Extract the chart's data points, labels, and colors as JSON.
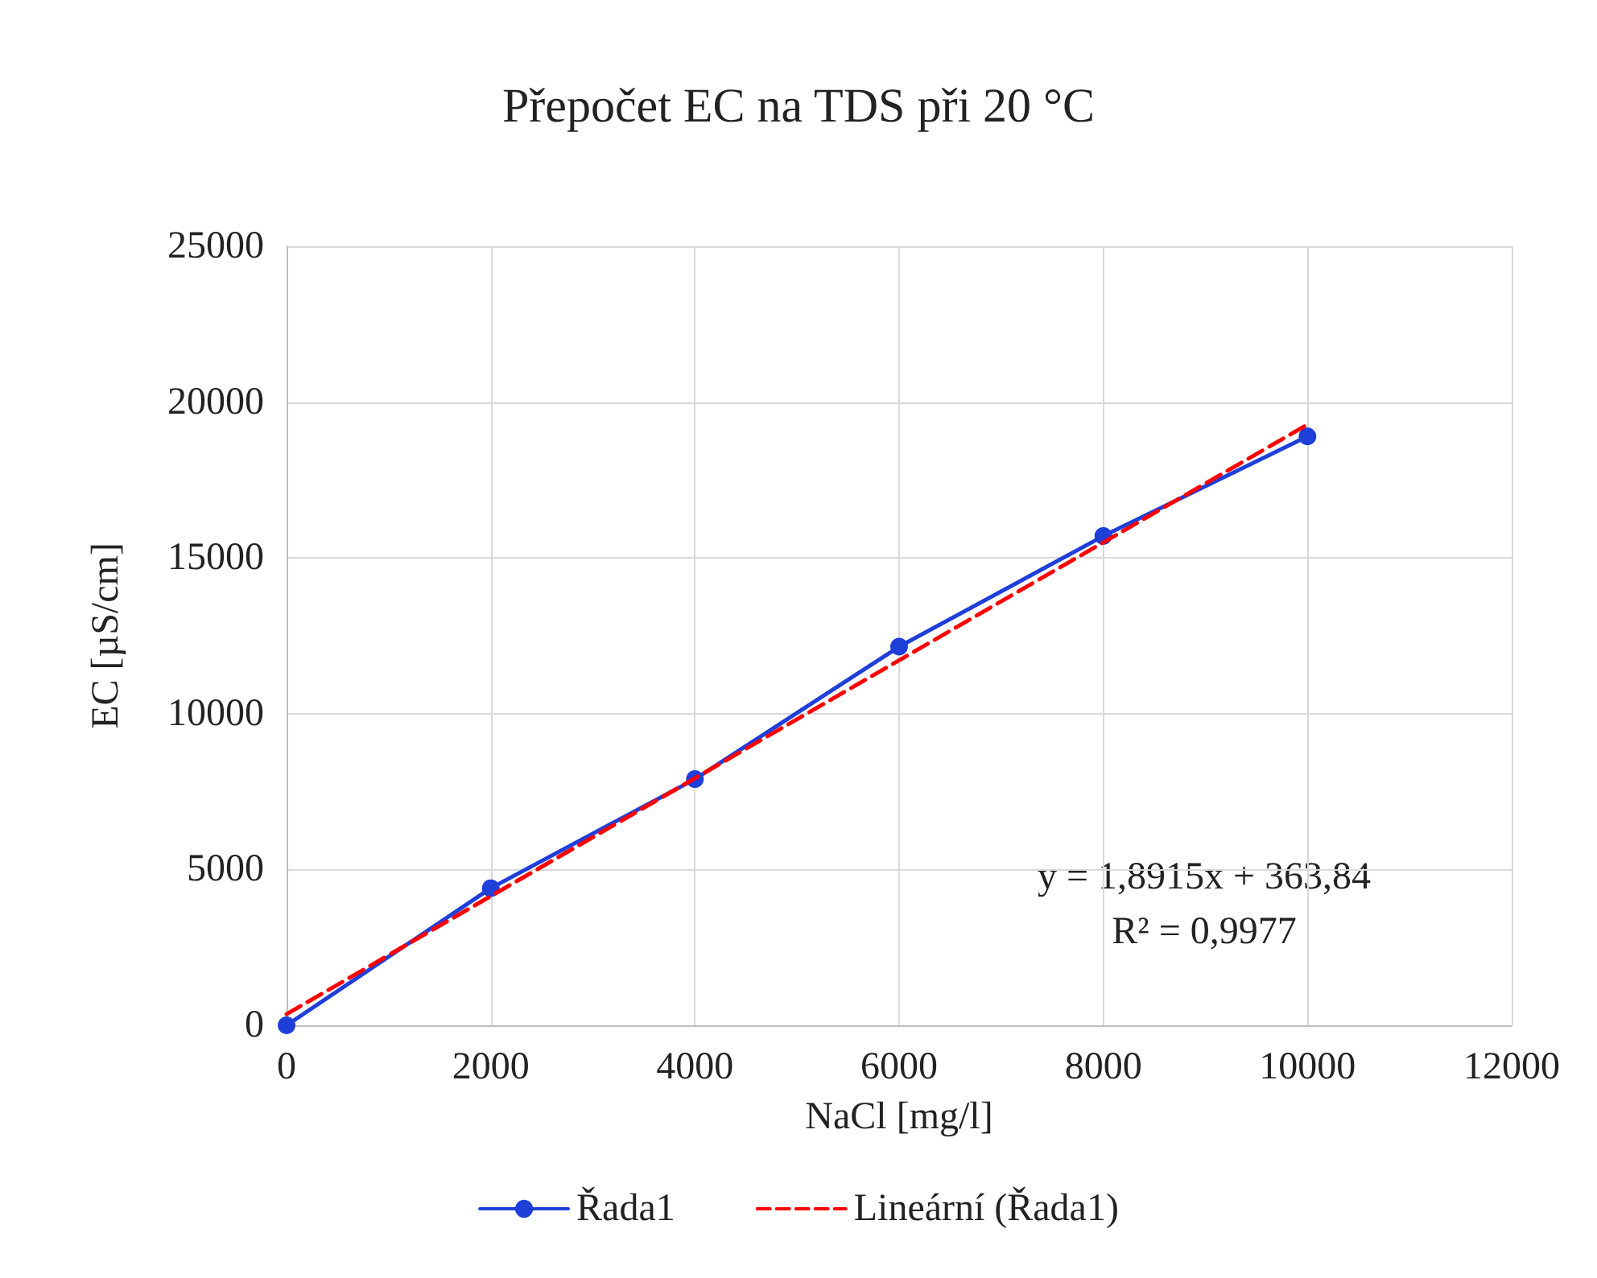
{
  "chart_data": {
    "type": "line",
    "title": "Přepočet EC na TDS při 20 °C",
    "xlabel": "NaCl [mg/l]",
    "ylabel": "EC [µS/cm]",
    "x": [
      0,
      2000,
      4000,
      6000,
      8000,
      10000
    ],
    "series": [
      {
        "name": "Řada1",
        "color": "#1f3fd9",
        "values": [
          0,
          4400,
          7900,
          12150,
          15700,
          18900
        ],
        "marker": "circle",
        "line_style": "solid"
      },
      {
        "name": "Lineární (Řada1)",
        "color": "#ff0000",
        "type": "line",
        "x": [
          0,
          10000
        ],
        "values": [
          360,
          19280
        ],
        "marker": "none",
        "line_style": "dashed"
      }
    ],
    "xlim": [
      0,
      12000
    ],
    "xticks": [
      0,
      2000,
      4000,
      6000,
      8000,
      10000,
      12000
    ],
    "ylim": [
      0,
      25000
    ],
    "yticks": [
      0,
      5000,
      10000,
      15000,
      20000,
      25000
    ],
    "grid": true,
    "legend": "bottom",
    "annotations": [
      "y = 1,8915x + 363,84\nR² = 0,9977"
    ]
  }
}
